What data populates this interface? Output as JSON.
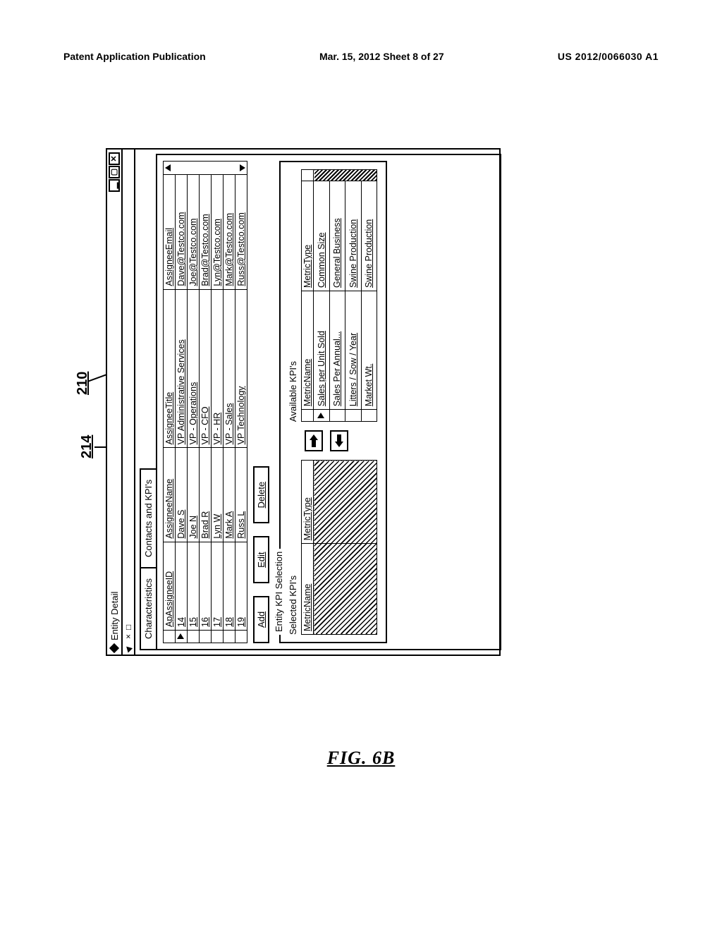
{
  "header": {
    "left": "Patent Application Publication",
    "center": "Mar. 15, 2012  Sheet 8 of 27",
    "right": "US 2012/0066030 A1"
  },
  "callouts": {
    "c214": "214",
    "c210": "210"
  },
  "window": {
    "title": "Entity Detail",
    "sub_cursor": "",
    "sub_x": "×",
    "sub_sq": "□"
  },
  "tabs": {
    "characteristics": "Characteristics",
    "contacts_kpis": "Contacts and KPI's"
  },
  "assignees": {
    "headers": {
      "id": "ApAssigneeID",
      "name": "AssigneeName",
      "title": "AssigneeTitle",
      "email": "AssigneeEmail"
    },
    "rows": [
      {
        "id": "14",
        "name": "Dave S",
        "title": "VP Administrative Services",
        "email": "Dave@Testco.com",
        "current": true
      },
      {
        "id": "15",
        "name": "Joe N",
        "title": "VP - Operations",
        "email": "Joe@Testco.com"
      },
      {
        "id": "16",
        "name": "Brad R",
        "title": "VP - CFO",
        "email": "Brad@Testco.com"
      },
      {
        "id": "17",
        "name": "Lyn W",
        "title": "VP - HR",
        "email": "Lyn@Testco.com"
      },
      {
        "id": "18",
        "name": "Mark A",
        "title": "VP - Sales",
        "email": "Mark@Testco.com"
      },
      {
        "id": "19",
        "name": "Russ L",
        "title": "VP Technology",
        "email": "Russ@Testco.com"
      }
    ]
  },
  "buttons": {
    "add": "Add",
    "edit": "Edit",
    "delete": "Delete"
  },
  "kpi": {
    "legend": "Entity KPI Selection",
    "selected_label": "Selected KPI's",
    "available_label": "Available KPI's",
    "headers": {
      "name": "MetricName",
      "type": "MetricType"
    },
    "available_rows": [
      {
        "name": "Sales per Unit Sold",
        "type": "Common Size",
        "current": true
      },
      {
        "name": "Sales Per Annual...",
        "type": "General Business"
      },
      {
        "name": "Litters / Sow / Year",
        "type": "Swine Production"
      },
      {
        "name": "Market Wt.",
        "type": "Swine Production"
      }
    ]
  },
  "figure_label": "FIG. 6B"
}
